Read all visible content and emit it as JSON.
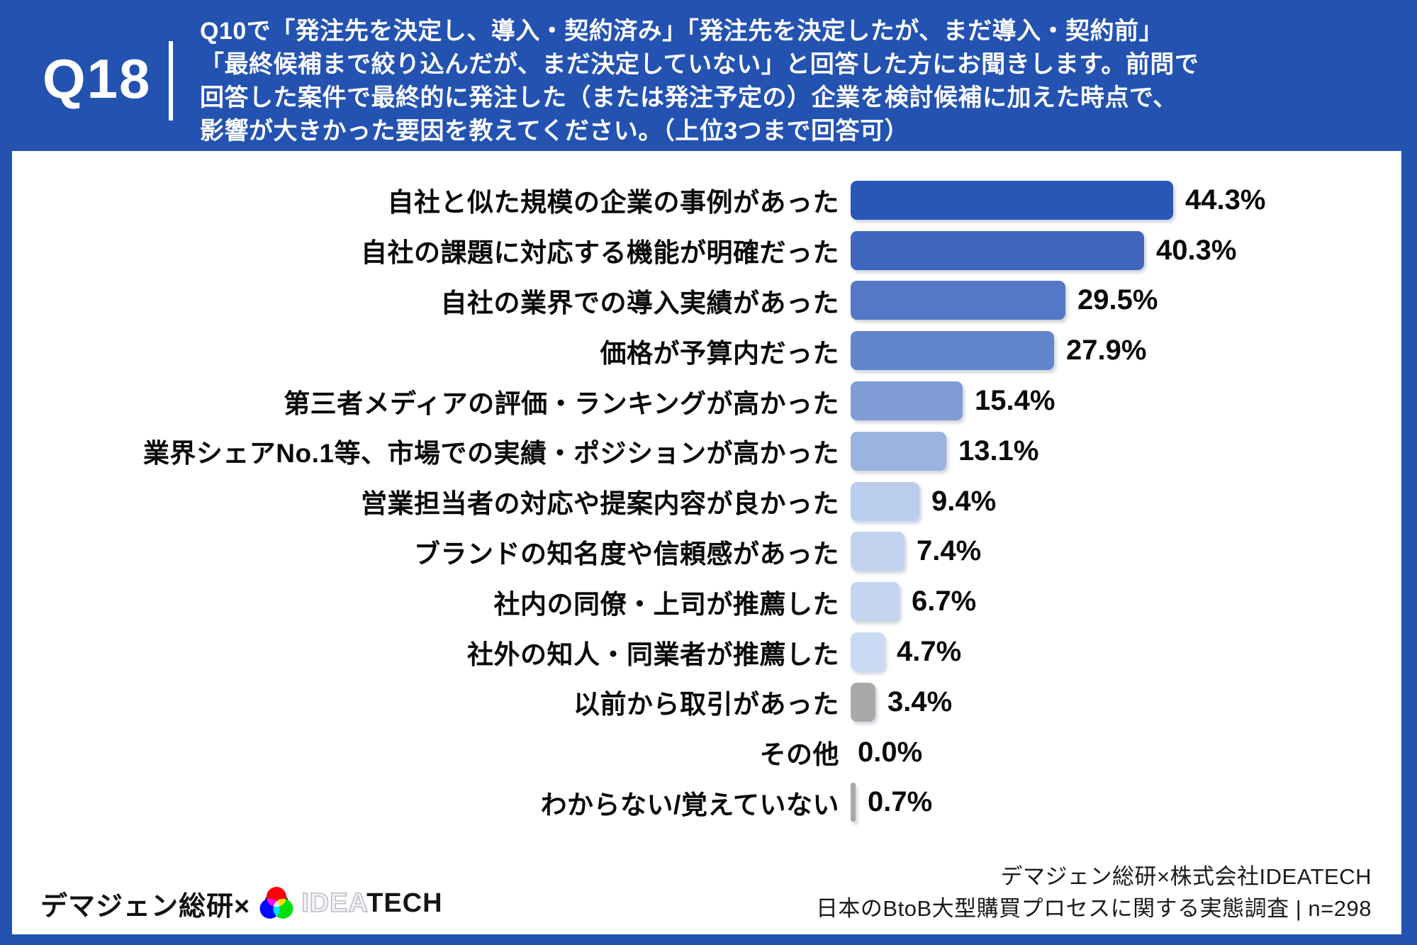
{
  "header": {
    "q_label": "Q18",
    "question": "Q10で「発注先を決定し、導入・契約済み」「発注先を決定したが、まだ導入・契約前」\n「最終候補まで絞り込んだが、まだ決定していない」と回答した方にお聞きします。前問で\n回答した案件で最終的に発注した（または発注予定の）企業を検討候補に加えた時点で、\n影響が大きかった要因を教えてください。（上位3つまで回答可）"
  },
  "chart_data": {
    "type": "bar",
    "orientation": "horizontal",
    "unit": "%",
    "xlim": [
      0,
      45
    ],
    "grid": false,
    "legend": false,
    "categories": [
      "自社と似た規模の企業の事例があった",
      "自社の課題に対応する機能が明確だった",
      "自社の業界での導入実績があった",
      "価格が予算内だった",
      "第三者メディアの評価・ランキングが高かった",
      "業界シェアNo.1等、市場での実績・ポジションが高かった",
      "営業担当者の対応や提案内容が良かった",
      "ブランドの知名度や信頼感があった",
      "社内の同僚・上司が推薦した",
      "社外の知人・同業者が推薦した",
      "以前から取引があった",
      "その他",
      "わからない/覚えていない"
    ],
    "values": [
      44.3,
      40.3,
      29.5,
      27.9,
      15.4,
      13.1,
      9.4,
      7.4,
      6.7,
      4.7,
      3.4,
      0.0,
      0.7
    ],
    "value_labels": [
      "44.3%",
      "40.3%",
      "29.5%",
      "27.9%",
      "15.4%",
      "13.1%",
      "9.4%",
      "7.4%",
      "6.7%",
      "4.7%",
      "3.4%",
      "0.0%",
      "0.7%"
    ],
    "bar_colors": [
      "#2857b5",
      "#3f66bc",
      "#5478c5",
      "#6385cb",
      "#7f9cd5",
      "#9bb3e0",
      "#bacded",
      "#c2d3ef",
      "#c4d5f0",
      "#cadaf2",
      "#a9a9a9",
      null,
      "#a9a9a9"
    ]
  },
  "footer": {
    "brand_left": "デマジェン総研×",
    "logo_text_idea": "IDEA",
    "logo_text_tech": "TECH",
    "source_line1": "デマジェン総研×株式会社IDEATECH",
    "source_line2": "日本のBtoB大型購買プロセスに関する実態調査 | n=298"
  },
  "colors": {
    "frame_blue": "#2352b1",
    "panel_bg": "#ffffff",
    "gray_bar": "#a9a9a9",
    "text_dark": "#0a0a0a"
  }
}
